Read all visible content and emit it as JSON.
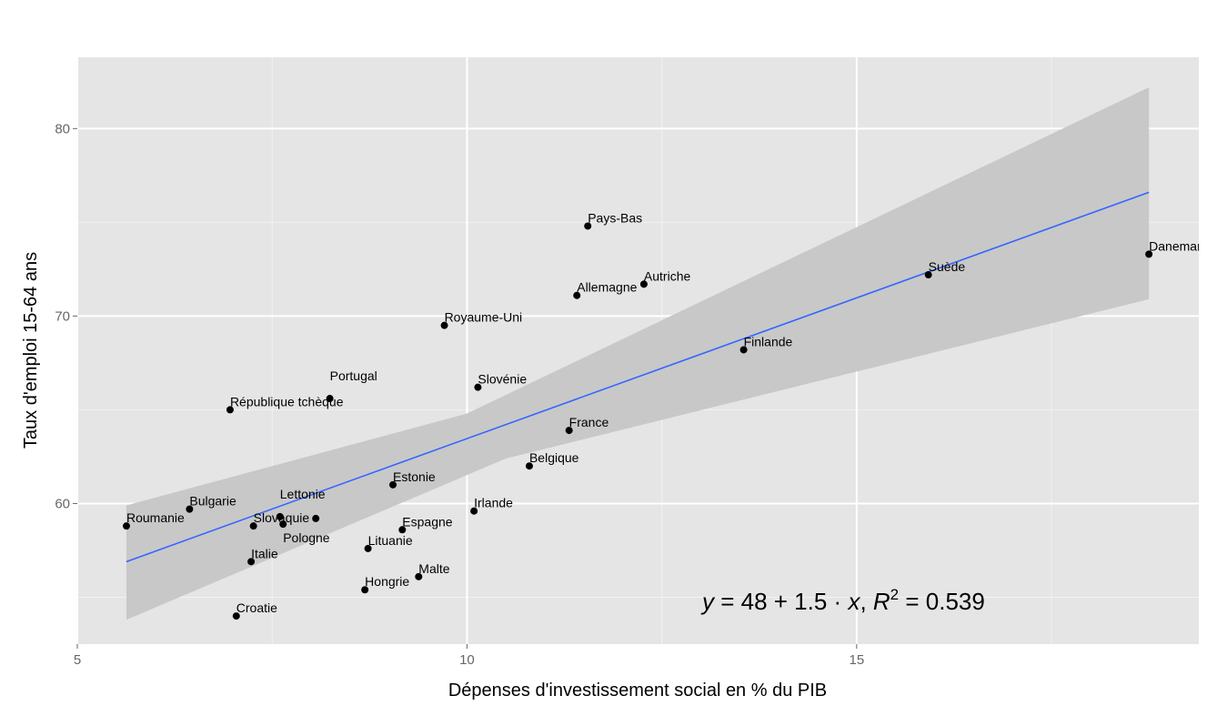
{
  "chart_data": {
    "type": "scatter",
    "xlabel": "Dépenses d'investissement social en % du PIB",
    "ylabel": "Taux d'emploi 15-64 ans",
    "xlim": [
      5,
      19.39
    ],
    "ylim": [
      52.5,
      83.8
    ],
    "x_ticks": [
      5,
      10,
      15
    ],
    "y_ticks": [
      60,
      70,
      80
    ],
    "grid": true,
    "annotation": {
      "y": "y",
      "eq": " = 48 + 1.5 · ",
      "x": "x",
      "sep": ",  ",
      "r": "R",
      "sup": "2",
      "val": " = 0.539"
    },
    "fit": {
      "intercept": 48,
      "slope": 1.5,
      "r2": 0.539,
      "line": [
        [
          5.63,
          56.9
        ],
        [
          18.75,
          76.6
        ]
      ],
      "band_lower": [
        [
          5.63,
          53.8
        ],
        [
          10.5,
          62.4
        ],
        [
          18.75,
          70.9
        ]
      ],
      "band_upper": [
        [
          5.63,
          59.9
        ],
        [
          10.0,
          64.8
        ],
        [
          18.75,
          82.2
        ]
      ]
    },
    "colors": {
      "panel": "#e5e5e5",
      "band": "#c8c8c8",
      "fit": "#3366ff",
      "point": "#000000"
    },
    "points": [
      {
        "label": "Roumanie",
        "x": 5.63,
        "y": 58.8
      },
      {
        "label": "Bulgarie",
        "x": 6.44,
        "y": 59.7
      },
      {
        "label": "Slovaquie",
        "x": 7.26,
        "y": 58.8
      },
      {
        "label": "Lettonie",
        "x": 7.6,
        "y": 59.3
      },
      {
        "label": "Pologne",
        "x": 7.64,
        "y": 58.9
      },
      {
        "label": "",
        "x": 8.06,
        "y": 59.2
      },
      {
        "label": "Italie",
        "x": 7.23,
        "y": 56.9
      },
      {
        "label": "Croatie",
        "x": 7.04,
        "y": 54.0
      },
      {
        "label": "République tchèque",
        "x": 6.96,
        "y": 65.0
      },
      {
        "label": "Portugal",
        "x": 8.24,
        "y": 65.6
      },
      {
        "label": "Royaume-Uni",
        "x": 9.71,
        "y": 69.5
      },
      {
        "label": "Slovénie",
        "x": 10.14,
        "y": 66.2
      },
      {
        "label": "Estonie",
        "x": 9.05,
        "y": 61.0
      },
      {
        "label": "Espagne",
        "x": 9.17,
        "y": 58.6
      },
      {
        "label": "Lituanie",
        "x": 8.73,
        "y": 57.6
      },
      {
        "label": "Hongrie",
        "x": 8.69,
        "y": 55.4
      },
      {
        "label": "Malte",
        "x": 9.38,
        "y": 56.1
      },
      {
        "label": "Irlande",
        "x": 10.09,
        "y": 59.6
      },
      {
        "label": "Belgique",
        "x": 10.8,
        "y": 62.0
      },
      {
        "label": "France",
        "x": 11.31,
        "y": 63.9
      },
      {
        "label": "Pays-Bas",
        "x": 11.55,
        "y": 74.8
      },
      {
        "label": "Allemagne",
        "x": 11.41,
        "y": 71.1
      },
      {
        "label": "Autriche",
        "x": 12.27,
        "y": 71.7
      },
      {
        "label": "Finlande",
        "x": 13.55,
        "y": 68.2
      },
      {
        "label": "Suède",
        "x": 15.92,
        "y": 72.2
      },
      {
        "label": "Danemark",
        "x": 18.75,
        "y": 73.3
      }
    ]
  }
}
